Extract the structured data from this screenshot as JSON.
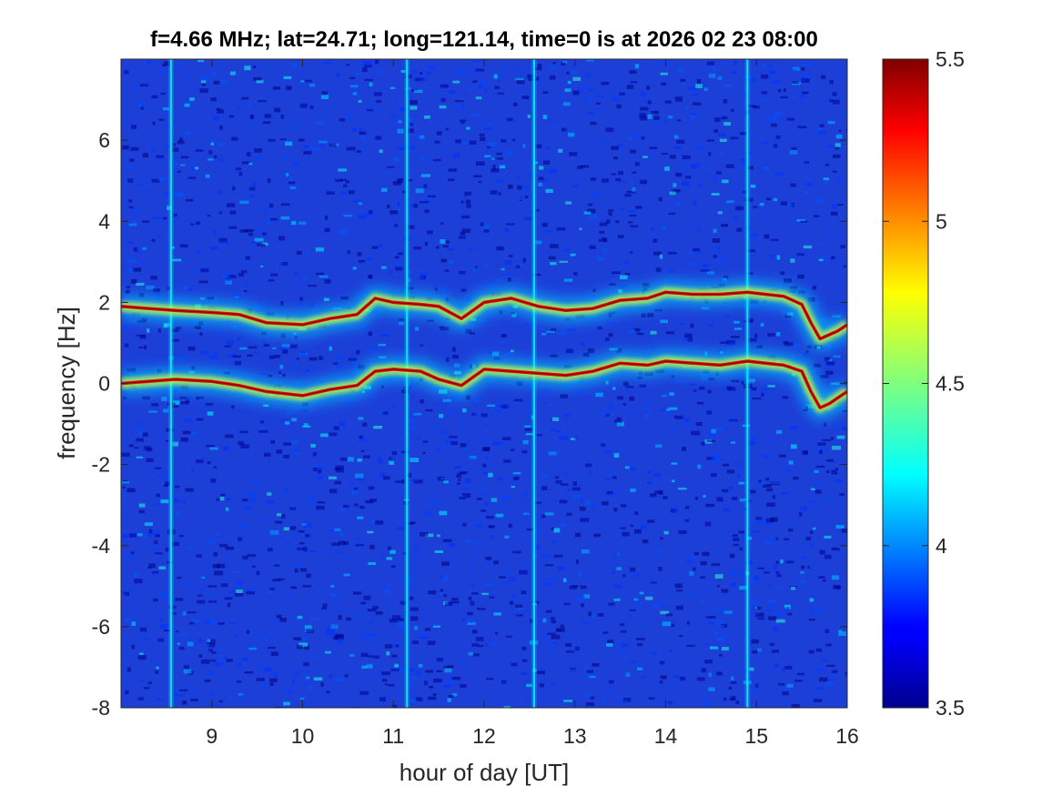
{
  "chart_data": {
    "type": "heatmap",
    "title": "f=4.66 MHz;  lat=24.71; long=121.14, time=0 is at 2026 02 23 08:00",
    "xlabel": "hour of day [UT]",
    "ylabel": "frequency [Hz]",
    "xlim": [
      8.0,
      16.0
    ],
    "ylim": [
      -8,
      8
    ],
    "x_ticks": [
      9,
      10,
      11,
      12,
      13,
      14,
      15,
      16
    ],
    "x_tick_labels": [
      "9",
      "10",
      "11",
      "12",
      "13",
      "14",
      "15",
      "16"
    ],
    "y_ticks": [
      -8,
      -6,
      -4,
      -2,
      0,
      2,
      4,
      6
    ],
    "y_tick_labels": [
      "-8",
      "-6",
      "-4",
      "-2",
      "0",
      "2",
      "4",
      "6"
    ],
    "colorbar": {
      "colormap": "jet",
      "clim": [
        3.5,
        5.5
      ],
      "ticks": [
        3.5,
        4,
        4.5,
        5,
        5.5
      ],
      "tick_labels": [
        "3.5",
        "4",
        "4.5",
        "5",
        "5.5"
      ]
    },
    "background_level": 3.75,
    "series": [
      {
        "x": [
          8.0,
          8.3,
          8.6,
          9.0,
          9.3,
          9.6,
          10.0,
          10.3,
          10.6,
          10.8,
          11.0,
          11.3,
          11.5,
          11.75,
          12.0,
          12.3,
          12.6,
          12.9,
          13.2,
          13.5,
          13.8,
          14.0,
          14.3,
          14.6,
          14.9,
          15.1,
          15.3,
          15.5,
          15.6,
          15.7,
          15.8,
          15.9,
          16.0
        ],
        "y": [
          1.9,
          1.85,
          1.8,
          1.75,
          1.7,
          1.5,
          1.45,
          1.6,
          1.7,
          2.1,
          2.0,
          1.95,
          1.9,
          1.6,
          2.0,
          2.1,
          1.9,
          1.8,
          1.85,
          2.05,
          2.1,
          2.25,
          2.2,
          2.2,
          2.25,
          2.2,
          2.15,
          1.95,
          1.5,
          1.1,
          1.2,
          1.3,
          1.45
        ]
      },
      {
        "x": [
          8.0,
          8.3,
          8.6,
          9.0,
          9.3,
          9.6,
          10.0,
          10.3,
          10.6,
          10.8,
          11.0,
          11.3,
          11.5,
          11.75,
          12.0,
          12.3,
          12.6,
          12.9,
          13.2,
          13.5,
          13.8,
          14.0,
          14.3,
          14.6,
          14.9,
          15.1,
          15.3,
          15.5,
          15.6,
          15.7,
          15.8,
          15.9,
          16.0
        ],
        "y": [
          0.0,
          0.05,
          0.1,
          0.05,
          -0.05,
          -0.2,
          -0.3,
          -0.15,
          -0.05,
          0.3,
          0.35,
          0.3,
          0.1,
          -0.05,
          0.35,
          0.3,
          0.25,
          0.2,
          0.3,
          0.5,
          0.45,
          0.55,
          0.5,
          0.45,
          0.55,
          0.5,
          0.45,
          0.3,
          -0.2,
          -0.6,
          -0.5,
          -0.35,
          -0.2
        ]
      }
    ],
    "vertical_stripes_x": [
      8.55,
      11.15,
      12.55,
      14.9
    ]
  }
}
